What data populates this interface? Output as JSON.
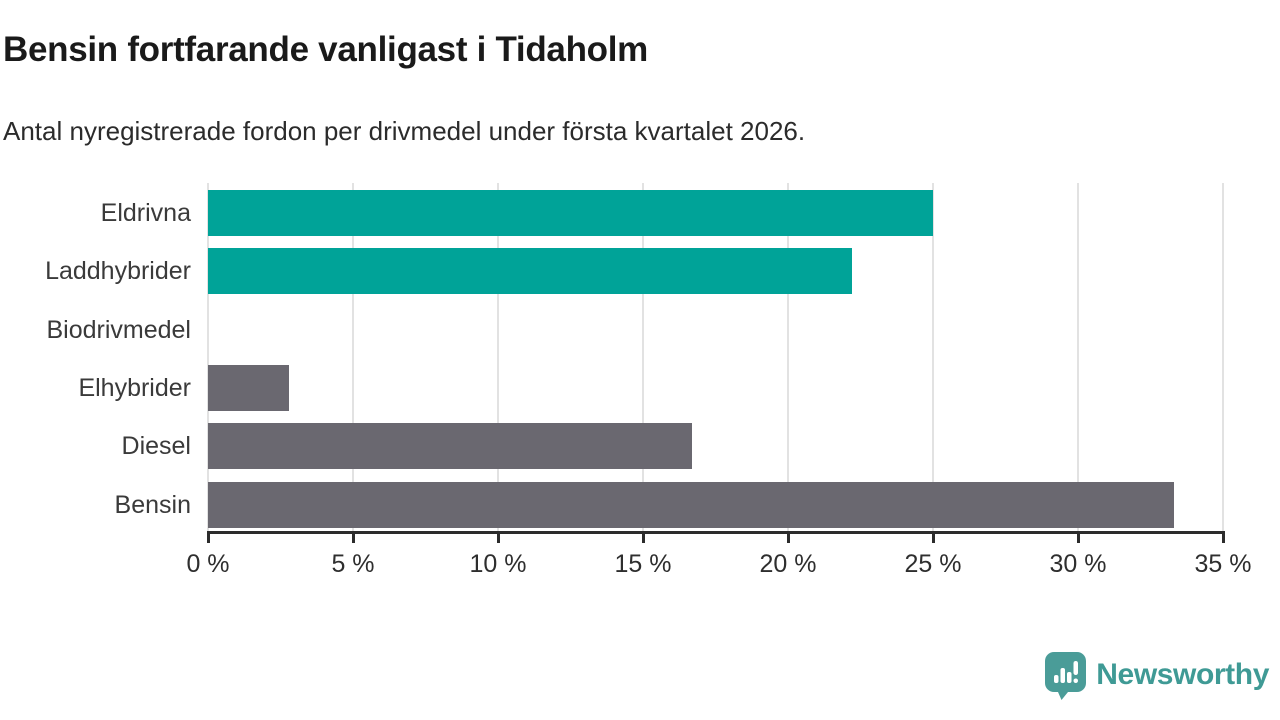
{
  "header": {
    "title": "Bensin fortfarande vanligast i Tidaholm",
    "subtitle": "Antal nyregistrerade fordon per drivmedel under första kvartalet 2026."
  },
  "chart_data": {
    "type": "bar",
    "orientation": "horizontal",
    "title": "Bensin fortfarande vanligast i Tidaholm",
    "subtitle": "Antal nyregistrerade fordon per drivmedel under första kvartalet 2026.",
    "categories": [
      "Eldrivna",
      "Laddhybrider",
      "Biodrivmedel",
      "Elhybrider",
      "Diesel",
      "Bensin"
    ],
    "values": [
      25.0,
      22.2,
      0,
      2.8,
      16.7,
      33.3
    ],
    "unit": "%",
    "xlim": [
      0,
      35
    ],
    "x_tick_values": [
      0,
      5,
      10,
      15,
      20,
      25,
      30,
      35
    ],
    "x_tick_labels": [
      "0 %",
      "5 %",
      "10 %",
      "15 %",
      "20 %",
      "25 %",
      "30 %",
      "35 %"
    ],
    "grid": true,
    "legend": "none",
    "bar_colors": [
      "#00a398",
      "#00a398",
      "#6a6870",
      "#6a6870",
      "#6a6870",
      "#6a6870"
    ],
    "highlight_color": "#00a398",
    "default_color": "#6a6870"
  },
  "branding": {
    "logo_text": "Newsworthy",
    "logo_icon": "speech-bubble-bar-chart-icon",
    "logo_color": "#4a9c98",
    "logo_text_color": "#3f9a95"
  }
}
